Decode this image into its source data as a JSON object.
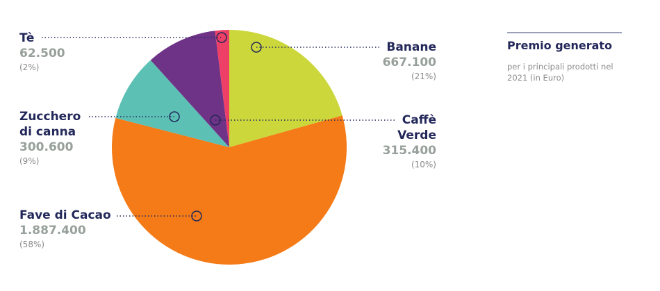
{
  "side": {
    "title": "Premio generato",
    "subtitle": "per i principali prodotti nel 2021 (in Euro)"
  },
  "chart_data": {
    "type": "pie",
    "start_angle_deg": 0,
    "slices": [
      {
        "key": "banane",
        "label": "Banane",
        "value": 667100,
        "value_text": "667.100",
        "percent_text": "(21%)",
        "color": "#cbd73a"
      },
      {
        "key": "fave",
        "label": "Fave di Cacao",
        "value": 1887400,
        "value_text": "1.887.400",
        "percent_text": "(58%)",
        "color": "#f47b17"
      },
      {
        "key": "zucchero",
        "label": "Zucchero\ndi canna",
        "value": 300600,
        "value_text": "300.600",
        "percent_text": "(9%)",
        "color": "#5cc0b5"
      },
      {
        "key": "caffe",
        "label": "Caffè\nVerde",
        "value": 315400,
        "value_text": "315.400",
        "percent_text": "(10%)",
        "color": "#6e3386"
      },
      {
        "key": "te",
        "label": "Tè",
        "value": 62500,
        "value_text": "62.500",
        "percent_text": "(2%)",
        "color": "#ee3f67"
      }
    ],
    "leader_color": "#23285a"
  }
}
